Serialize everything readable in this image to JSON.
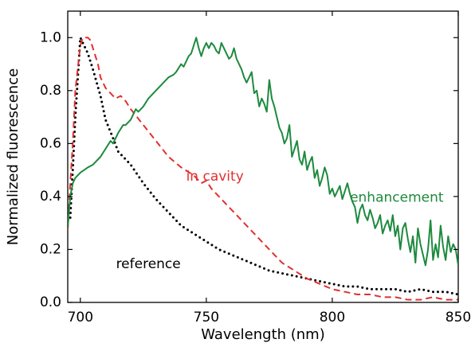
{
  "chart_data": {
    "type": "line",
    "xlabel": "Wavelength (nm)",
    "ylabel": "Normalized fluorescence",
    "xlim": [
      695,
      850
    ],
    "ylim": [
      0,
      1.1
    ],
    "x_ticks": [
      700,
      750,
      800,
      850
    ],
    "y_ticks": [
      0.0,
      0.2,
      0.4,
      0.6,
      0.8,
      1.0
    ],
    "x_tick_labels": [
      "700",
      "750",
      "800",
      "850"
    ],
    "y_tick_labels": [
      "0.0",
      "0.2",
      "0.4",
      "0.6",
      "0.8",
      "1.0"
    ],
    "grid": false,
    "series": [
      {
        "name": "reference",
        "color": "#000000",
        "style": "dotted",
        "x": [
          696,
          697,
          698,
          699,
          700,
          701,
          702,
          703,
          705,
          708,
          710,
          713,
          715,
          718,
          720,
          725,
          730,
          735,
          740,
          745,
          750,
          755,
          760,
          765,
          770,
          775,
          780,
          785,
          790,
          795,
          800,
          805,
          810,
          815,
          820,
          825,
          830,
          835,
          840,
          845,
          850
        ],
        "y": [
          0.32,
          0.5,
          0.7,
          0.85,
          1.0,
          0.98,
          0.96,
          0.94,
          0.88,
          0.78,
          0.69,
          0.62,
          0.57,
          0.54,
          0.52,
          0.45,
          0.39,
          0.34,
          0.29,
          0.26,
          0.23,
          0.2,
          0.18,
          0.16,
          0.14,
          0.12,
          0.11,
          0.1,
          0.09,
          0.08,
          0.07,
          0.06,
          0.06,
          0.05,
          0.05,
          0.05,
          0.04,
          0.05,
          0.04,
          0.04,
          0.03
        ]
      },
      {
        "name": "in cavity",
        "color": "#e03030",
        "style": "dashed",
        "x": [
          695,
          696,
          697,
          698,
          700,
          701,
          702,
          703,
          704,
          705,
          707,
          708,
          710,
          712,
          714,
          716,
          718,
          720,
          725,
          730,
          735,
          740,
          745,
          748,
          750,
          752,
          755,
          760,
          765,
          770,
          775,
          780,
          785,
          790,
          795,
          800,
          805,
          810,
          815,
          820,
          825,
          830,
          835,
          840,
          845,
          850
        ],
        "y": [
          0.27,
          0.45,
          0.6,
          0.8,
          0.97,
          1.0,
          1.0,
          1.0,
          0.99,
          0.96,
          0.9,
          0.85,
          0.81,
          0.79,
          0.77,
          0.78,
          0.76,
          0.73,
          0.67,
          0.61,
          0.55,
          0.51,
          0.48,
          0.45,
          0.46,
          0.43,
          0.4,
          0.35,
          0.3,
          0.25,
          0.2,
          0.15,
          0.12,
          0.09,
          0.07,
          0.05,
          0.04,
          0.03,
          0.03,
          0.02,
          0.02,
          0.01,
          0.01,
          0.02,
          0.01,
          0.01
        ]
      },
      {
        "name": "enhancement",
        "color": "#1e8a3e",
        "style": "solid",
        "x": [
          695,
          696,
          697,
          698,
          700,
          703,
          705,
          708,
          710,
          712,
          713,
          715,
          717,
          718,
          720,
          722,
          723,
          725,
          727,
          728,
          730,
          732,
          733,
          735,
          737,
          738,
          740,
          741,
          742,
          743,
          744,
          745,
          746,
          747,
          748,
          749,
          750,
          751,
          752,
          753,
          754,
          755,
          756,
          757,
          758,
          759,
          760,
          761,
          762,
          763,
          764,
          765,
          766,
          767,
          768,
          769,
          770,
          771,
          772,
          773,
          774,
          775,
          776,
          777,
          778,
          779,
          780,
          781,
          782,
          783,
          784,
          785,
          786,
          787,
          788,
          789,
          790,
          791,
          792,
          793,
          794,
          795,
          796,
          797,
          798,
          799,
          800,
          801,
          802,
          803,
          804,
          805,
          806,
          807,
          808,
          809,
          810,
          811,
          812,
          813,
          814,
          815,
          816,
          817,
          818,
          819,
          820,
          821,
          822,
          823,
          824,
          825,
          826,
          827,
          828,
          829,
          830,
          831,
          832,
          833,
          834,
          835,
          836,
          837,
          838,
          839,
          840,
          841,
          842,
          843,
          844,
          845,
          846,
          847,
          848,
          849,
          850
        ],
        "y": [
          0.28,
          0.4,
          0.45,
          0.47,
          0.49,
          0.51,
          0.52,
          0.55,
          0.58,
          0.61,
          0.6,
          0.64,
          0.67,
          0.67,
          0.69,
          0.73,
          0.72,
          0.74,
          0.77,
          0.78,
          0.8,
          0.82,
          0.83,
          0.85,
          0.86,
          0.87,
          0.9,
          0.89,
          0.91,
          0.93,
          0.94,
          0.97,
          1.0,
          0.96,
          0.93,
          0.96,
          0.98,
          0.96,
          0.98,
          0.97,
          0.95,
          0.94,
          0.98,
          0.96,
          0.94,
          0.92,
          0.93,
          0.96,
          0.92,
          0.9,
          0.88,
          0.85,
          0.83,
          0.85,
          0.87,
          0.79,
          0.8,
          0.74,
          0.77,
          0.75,
          0.72,
          0.84,
          0.77,
          0.74,
          0.7,
          0.66,
          0.64,
          0.6,
          0.62,
          0.67,
          0.55,
          0.58,
          0.61,
          0.54,
          0.52,
          0.57,
          0.5,
          0.53,
          0.55,
          0.47,
          0.5,
          0.44,
          0.47,
          0.51,
          0.48,
          0.41,
          0.43,
          0.4,
          0.42,
          0.44,
          0.39,
          0.42,
          0.45,
          0.41,
          0.38,
          0.36,
          0.3,
          0.35,
          0.37,
          0.33,
          0.31,
          0.35,
          0.32,
          0.28,
          0.3,
          0.33,
          0.26,
          0.29,
          0.31,
          0.27,
          0.33,
          0.25,
          0.29,
          0.2,
          0.28,
          0.3,
          0.24,
          0.19,
          0.25,
          0.15,
          0.28,
          0.22,
          0.18,
          0.14,
          0.2,
          0.31,
          0.16,
          0.22,
          0.17,
          0.29,
          0.21,
          0.16,
          0.25,
          0.19,
          0.22,
          0.2,
          0.14
        ]
      }
    ],
    "annotations": [
      {
        "text": "reference",
        "x": 727,
        "y": 0.145,
        "color": "#000000",
        "anchor": "middle"
      },
      {
        "text": "in cavity",
        "x": 742,
        "y": 0.475,
        "color": "#e03030",
        "anchor": "start"
      },
      {
        "text": "enhancement",
        "x": 807,
        "y": 0.395,
        "color": "#1e8a3e",
        "anchor": "start"
      }
    ]
  }
}
